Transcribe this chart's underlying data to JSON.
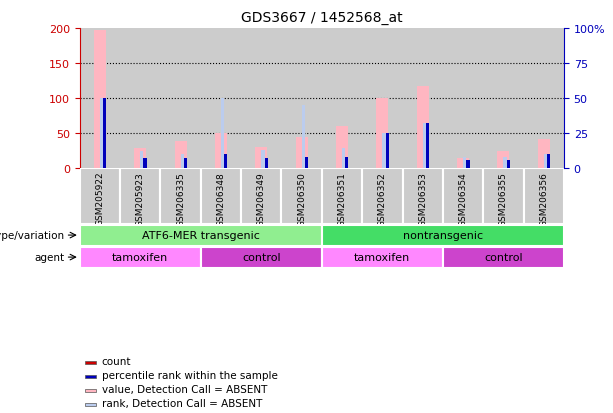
{
  "title": "GDS3667 / 1452568_at",
  "samples": [
    "GSM205922",
    "GSM205923",
    "GSM206335",
    "GSM206348",
    "GSM206349",
    "GSM206350",
    "GSM206351",
    "GSM206352",
    "GSM206353",
    "GSM206354",
    "GSM206355",
    "GSM206356"
  ],
  "count_values": [
    0,
    0,
    0,
    0,
    0,
    0,
    0,
    0,
    0,
    0,
    0,
    0
  ],
  "rank_values": [
    50,
    7,
    7,
    10,
    7,
    8,
    8,
    25,
    32,
    6,
    6,
    10
  ],
  "value_absent": [
    197,
    28,
    39,
    50,
    30,
    45,
    60,
    100,
    117,
    15,
    25,
    41
  ],
  "rank_absent": [
    50,
    12,
    10,
    50,
    13,
    45,
    14,
    25,
    32,
    8,
    8,
    10
  ],
  "ylim_left": [
    0,
    200
  ],
  "ylim_right": [
    0,
    100
  ],
  "yticks_left": [
    0,
    50,
    100,
    150,
    200
  ],
  "yticks_right": [
    0,
    25,
    50,
    75,
    100
  ],
  "ytick_labels_right": [
    "0",
    "25",
    "50",
    "75",
    "100%"
  ],
  "grid_values": [
    50,
    100,
    150
  ],
  "genotype_groups": [
    {
      "label": "ATF6-MER transgenic",
      "start": 0,
      "end": 6,
      "color": "#90EE90"
    },
    {
      "label": "nontransgenic",
      "start": 6,
      "end": 12,
      "color": "#44DD66"
    }
  ],
  "agent_groups": [
    {
      "label": "tamoxifen",
      "start": 0,
      "end": 3,
      "color": "#FF88FF"
    },
    {
      "label": "control",
      "start": 3,
      "end": 6,
      "color": "#CC44CC"
    },
    {
      "label": "tamoxifen",
      "start": 6,
      "end": 9,
      "color": "#FF88FF"
    },
    {
      "label": "control",
      "start": 9,
      "end": 12,
      "color": "#CC44CC"
    }
  ],
  "legend_items": [
    {
      "label": "count",
      "color": "#CC0000"
    },
    {
      "label": "percentile rank within the sample",
      "color": "#0000BB"
    },
    {
      "label": "value, Detection Call = ABSENT",
      "color": "#FFB6C1"
    },
    {
      "label": "rank, Detection Call = ABSENT",
      "color": "#BBCCEE"
    }
  ],
  "left_axis_color": "#CC0000",
  "right_axis_color": "#0000BB",
  "count_color": "#CC0000",
  "rank_color": "#0000BB",
  "value_absent_color": "#FFB6C1",
  "rank_absent_color": "#BBCCEE",
  "bg_color": "#FFFFFF",
  "col_bg_color": "#CCCCCC",
  "col_sep_color": "#FFFFFF"
}
